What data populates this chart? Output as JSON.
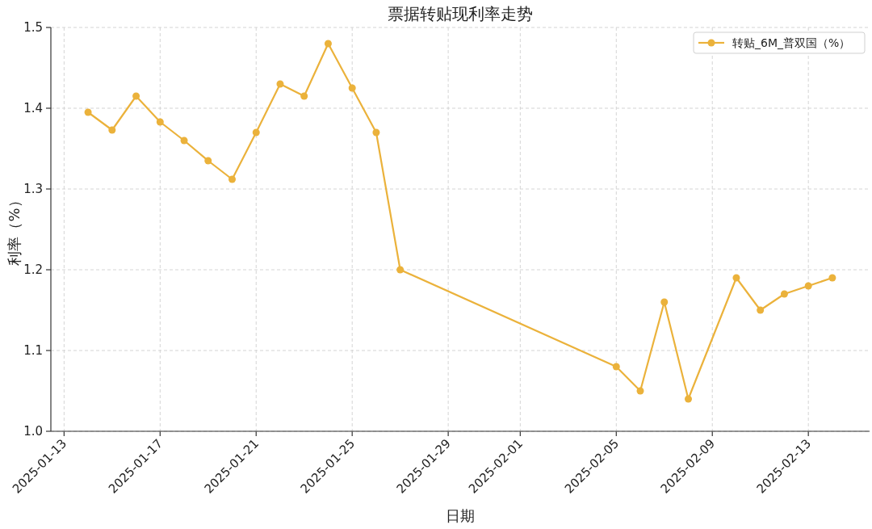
{
  "chart_data": {
    "type": "line",
    "title": "票据转贴现利率走势",
    "xlabel": "日期",
    "ylabel": "利率（%）",
    "x": [
      "2025-01-14",
      "2025-01-15",
      "2025-01-16",
      "2025-01-17",
      "2025-01-18",
      "2025-01-19",
      "2025-01-20",
      "2025-01-21",
      "2025-01-22",
      "2025-01-23",
      "2025-01-24",
      "2025-01-25",
      "2025-01-26",
      "2025-01-27",
      "2025-02-05",
      "2025-02-06",
      "2025-02-07",
      "2025-02-08",
      "2025-02-10",
      "2025-02-11",
      "2025-02-12",
      "2025-02-13",
      "2025-02-14"
    ],
    "series": [
      {
        "name": "转贴_6M_普双国（%）",
        "color": "#ebb23b",
        "values": [
          1.395,
          1.373,
          1.415,
          1.383,
          1.36,
          1.335,
          1.312,
          1.37,
          1.43,
          1.415,
          1.48,
          1.425,
          1.37,
          1.2,
          1.08,
          1.05,
          1.16,
          1.04,
          1.19,
          1.15,
          1.17,
          1.18,
          1.19
        ]
      }
    ],
    "xlim": [
      "2025-01-12T10:48",
      "2025-02-15T13:12"
    ],
    "ylim": [
      1.0,
      1.5
    ],
    "xticks": [
      "2025-01-13",
      "2025-01-17",
      "2025-01-21",
      "2025-01-25",
      "2025-01-29",
      "2025-02-01",
      "2025-02-05",
      "2025-02-09",
      "2025-02-13"
    ],
    "yticks": [
      {
        "value": 1.0,
        "label": "1.0"
      },
      {
        "value": 1.1,
        "label": "1.1"
      },
      {
        "value": 1.2,
        "label": "1.2"
      },
      {
        "value": 1.3,
        "label": "1.3"
      },
      {
        "value": 1.4,
        "label": "1.4"
      },
      {
        "value": 1.5,
        "label": "1.5"
      }
    ],
    "grid": true,
    "legend": "top right",
    "marker": "circle",
    "line_style": "solid"
  }
}
